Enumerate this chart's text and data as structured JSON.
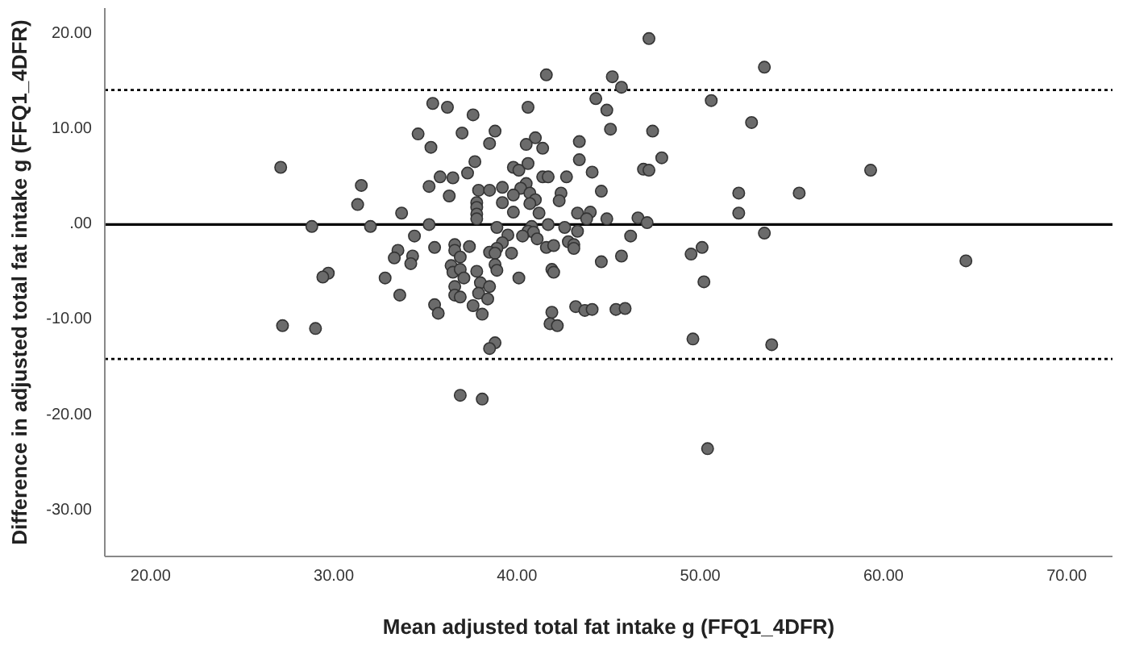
{
  "chart_data": {
    "type": "scatter",
    "xlabel": "Mean adjusted total fat intake g (FFQ1_4DFR)",
    "ylabel": "Difference in adjusted total fat intake g (FFQ1_4DFR)",
    "xlim": [
      17.5,
      72.5
    ],
    "ylim": [
      -35,
      22.5
    ],
    "xticks": [
      {
        "value": 20,
        "label": "20.00"
      },
      {
        "value": 30,
        "label": "30.00"
      },
      {
        "value": 40,
        "label": "40.00"
      },
      {
        "value": 50,
        "label": "50.00"
      },
      {
        "value": 60,
        "label": "60.00"
      },
      {
        "value": 70,
        "label": "70.00"
      }
    ],
    "yticks": [
      {
        "value": -30,
        "label": "-30.00"
      },
      {
        "value": -20,
        "label": "-20.00"
      },
      {
        "value": -10,
        "label": "-10.00"
      },
      {
        "value": 0,
        "label": ".00"
      },
      {
        "value": 10,
        "label": "10.00"
      },
      {
        "value": 20,
        "label": "20.00"
      }
    ],
    "marker": "circle",
    "grid": false,
    "ref_lines": [
      {
        "axis": "y",
        "value": 13.9,
        "line_style": "dotted",
        "color": "#000000"
      },
      {
        "axis": "y",
        "value": -0.2,
        "line_style": "solid",
        "color": "#000000"
      },
      {
        "axis": "y",
        "value": -14.3,
        "line_style": "dotted",
        "color": "#000000"
      }
    ],
    "series": [
      {
        "color": "#6b6b6b",
        "x": [
          35.4,
          36.2,
          37.6,
          34.6,
          37.0,
          35.3,
          37.7,
          27.1,
          37.3,
          35.8,
          36.5,
          31.5,
          35.2,
          37.9,
          31.3,
          36.3,
          37.8,
          37.8,
          37.8,
          37.8,
          33.7,
          28.8,
          32.0,
          35.2,
          34.4,
          35.5,
          36.6,
          36.6,
          37.4,
          33.5,
          33.3,
          34.3,
          34.2,
          36.9,
          36.4,
          36.5,
          36.9,
          37.1,
          37.8,
          29.7,
          29.4,
          32.8,
          38.0,
          37.9,
          36.6,
          36.6,
          36.9,
          33.6,
          35.5,
          35.7,
          37.6,
          38.1,
          27.2,
          29.0,
          36.9,
          38.1,
          47.2,
          53.5,
          41.6,
          45.2,
          45.7,
          44.3,
          50.6,
          40.6,
          44.9,
          52.8,
          38.8,
          45.1,
          47.4,
          38.5,
          41.0,
          40.5,
          41.4,
          43.4,
          47.9,
          43.4,
          46.9,
          47.2,
          39.8,
          40.1,
          40.6,
          44.1,
          41.4,
          41.7,
          42.7,
          40.5,
          40.2,
          39.8,
          40.7,
          41.0,
          40.7,
          38.5,
          39.2,
          39.2,
          42.4,
          42.3,
          44.6,
          52.1,
          55.4,
          52.1,
          39.8,
          41.2,
          43.3,
          44.0,
          43.8,
          44.9,
          46.6,
          47.1,
          41.7,
          38.9,
          42.6,
          43.3,
          40.8,
          40.6,
          40.9,
          41.1,
          39.5,
          40.3,
          46.2,
          53.5,
          39.2,
          38.9,
          38.5,
          38.8,
          39.7,
          41.6,
          42.0,
          42.8,
          43.1,
          43.1,
          49.5,
          50.1,
          44.6,
          45.7,
          38.8,
          38.9,
          41.9,
          42.0,
          40.1,
          50.2,
          38.5,
          38.4,
          41.9,
          41.8,
          42.2,
          43.2,
          43.7,
          44.1,
          45.4,
          45.9,
          49.6,
          53.9,
          38.8,
          38.5,
          50.4,
          59.3,
          64.5
        ],
        "values": [
          12.5,
          12.1,
          11.3,
          9.3,
          9.4,
          7.9,
          6.4,
          5.8,
          5.2,
          4.8,
          4.7,
          3.9,
          3.8,
          3.4,
          1.9,
          2.8,
          2.1,
          1.6,
          0.9,
          0.4,
          1.0,
          -0.4,
          -0.4,
          -0.2,
          -1.4,
          -2.6,
          -2.3,
          -2.9,
          -2.5,
          -2.9,
          -3.7,
          -3.5,
          -4.3,
          -3.6,
          -4.5,
          -5.2,
          -4.9,
          -5.8,
          -5.1,
          -5.3,
          -5.7,
          -5.8,
          -6.3,
          -7.4,
          -6.7,
          -7.6,
          -7.8,
          -7.6,
          -8.6,
          -9.5,
          -8.7,
          -9.6,
          -10.8,
          -11.1,
          -18.1,
          -18.5,
          19.3,
          16.3,
          15.5,
          15.3,
          14.2,
          13.0,
          12.8,
          12.1,
          11.8,
          10.5,
          9.6,
          9.8,
          9.6,
          8.3,
          8.9,
          8.2,
          7.8,
          8.5,
          6.8,
          6.6,
          5.6,
          5.5,
          5.8,
          5.5,
          6.2,
          5.3,
          4.8,
          4.8,
          4.8,
          4.1,
          3.6,
          2.9,
          3.1,
          2.4,
          2.0,
          3.4,
          3.7,
          2.1,
          3.1,
          2.3,
          3.3,
          3.1,
          3.1,
          1.0,
          1.1,
          1.0,
          1.0,
          1.1,
          0.4,
          0.4,
          0.5,
          0.0,
          -0.2,
          -0.5,
          -0.5,
          -0.9,
          -0.4,
          -0.9,
          -1.0,
          -1.7,
          -1.3,
          -1.4,
          -1.4,
          -1.1,
          -2.1,
          -2.7,
          -3.1,
          -3.2,
          -3.2,
          -2.6,
          -2.4,
          -2.0,
          -2.3,
          -2.7,
          -3.3,
          -2.6,
          -4.1,
          -3.5,
          -4.4,
          -5.0,
          -4.9,
          -5.2,
          -5.8,
          -6.2,
          -6.7,
          -8.0,
          -9.4,
          -10.6,
          -10.8,
          -8.8,
          -9.2,
          -9.1,
          -9.1,
          -9.0,
          -12.2,
          -12.8,
          -12.6,
          -13.2,
          -23.7,
          5.5,
          -4.0
        ]
      }
    ]
  }
}
